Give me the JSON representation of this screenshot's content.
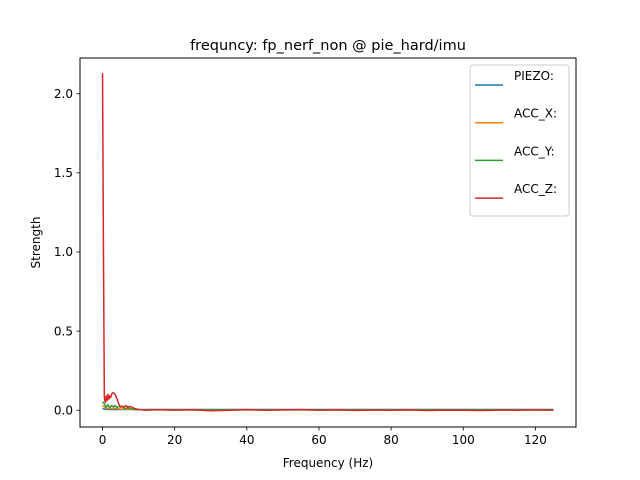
{
  "chart_data": {
    "type": "line",
    "title": "frequncy: fp_nerf_non @ pie_hard/imu",
    "xlabel": "Frequency (Hz)",
    "ylabel": "Strength",
    "xlim": [
      -6.25,
      131.25
    ],
    "ylim": [
      -0.106,
      2.226
    ],
    "xticks": [
      0,
      20,
      40,
      60,
      80,
      100,
      120
    ],
    "yticks": [
      0.0,
      0.5,
      1.0,
      1.5,
      2.0
    ],
    "xtick_labels": [
      "0",
      "20",
      "40",
      "60",
      "80",
      "100",
      "120"
    ],
    "ytick_labels": [
      "0.0",
      "0.5",
      "1.0",
      "1.5",
      "2.0"
    ],
    "legend_position": "top-right",
    "series": [
      {
        "name": "PIEZO:",
        "color": "#1f77b4",
        "x": [
          0,
          0.5,
          1,
          2,
          5,
          10,
          20,
          40,
          60,
          80,
          100,
          120,
          125
        ],
        "y": [
          0.01,
          0.008,
          0.006,
          0.005,
          0.005,
          0.005,
          0.005,
          0.005,
          0.005,
          0.005,
          0.005,
          0.005,
          0.005
        ]
      },
      {
        "name": "ACC_X:",
        "color": "#ff7f0e",
        "x": [
          0,
          0.5,
          1,
          1.5,
          2,
          3,
          4,
          5,
          6,
          7,
          8,
          10,
          20,
          40,
          60,
          80,
          100,
          120,
          125
        ],
        "y": [
          0.03,
          0.02,
          0.015,
          0.012,
          0.01,
          0.012,
          0.01,
          0.008,
          0.007,
          0.006,
          0.005,
          0.003,
          0.002,
          0.002,
          0.002,
          0.002,
          0.002,
          0.002,
          0.002
        ]
      },
      {
        "name": "ACC_Y:",
        "color": "#2ca02c",
        "x": [
          0,
          0.5,
          1,
          1.5,
          2,
          2.5,
          3,
          3.5,
          4,
          4.5,
          5,
          5.5,
          6,
          7,
          8,
          9,
          10,
          20,
          40,
          60,
          80,
          100,
          120,
          125
        ],
        "y": [
          0.055,
          0.04,
          0.02,
          0.035,
          0.015,
          0.03,
          0.02,
          0.03,
          0.015,
          0.025,
          0.02,
          0.025,
          0.01,
          0.015,
          0.008,
          0.005,
          0.003,
          0.002,
          0.002,
          0.002,
          0.002,
          0.002,
          0.002,
          0.002
        ]
      },
      {
        "name": "ACC_Z:",
        "color": "#d62728",
        "x": [
          0,
          0.25,
          0.5,
          0.75,
          1,
          1.25,
          1.5,
          1.75,
          2,
          2.25,
          2.5,
          2.75,
          3,
          3.5,
          4,
          4.5,
          5,
          5.5,
          6,
          6.5,
          7,
          7.5,
          8,
          8.5,
          9,
          10,
          12,
          15,
          20,
          25,
          30,
          35,
          40,
          45,
          50,
          55,
          60,
          65,
          70,
          75,
          80,
          85,
          90,
          95,
          100,
          105,
          110,
          115,
          120,
          125
        ],
        "y": [
          2.13,
          1.0,
          0.08,
          0.05,
          0.09,
          0.06,
          0.1,
          0.07,
          0.09,
          0.08,
          0.1,
          0.11,
          0.11,
          0.1,
          0.07,
          0.04,
          0.02,
          0.025,
          0.02,
          0.03,
          0.02,
          0.025,
          0.02,
          0.015,
          0.01,
          0.005,
          0.0,
          0.004,
          0.001,
          0.003,
          -0.003,
          0.0,
          0.004,
          0.0,
          0.002,
          0.004,
          0.0,
          0.002,
          -0.001,
          0.001,
          0.0,
          0.002,
          -0.002,
          0.001,
          0.0,
          -0.002,
          0.001,
          0.0,
          0.002,
          0.0
        ]
      }
    ]
  }
}
